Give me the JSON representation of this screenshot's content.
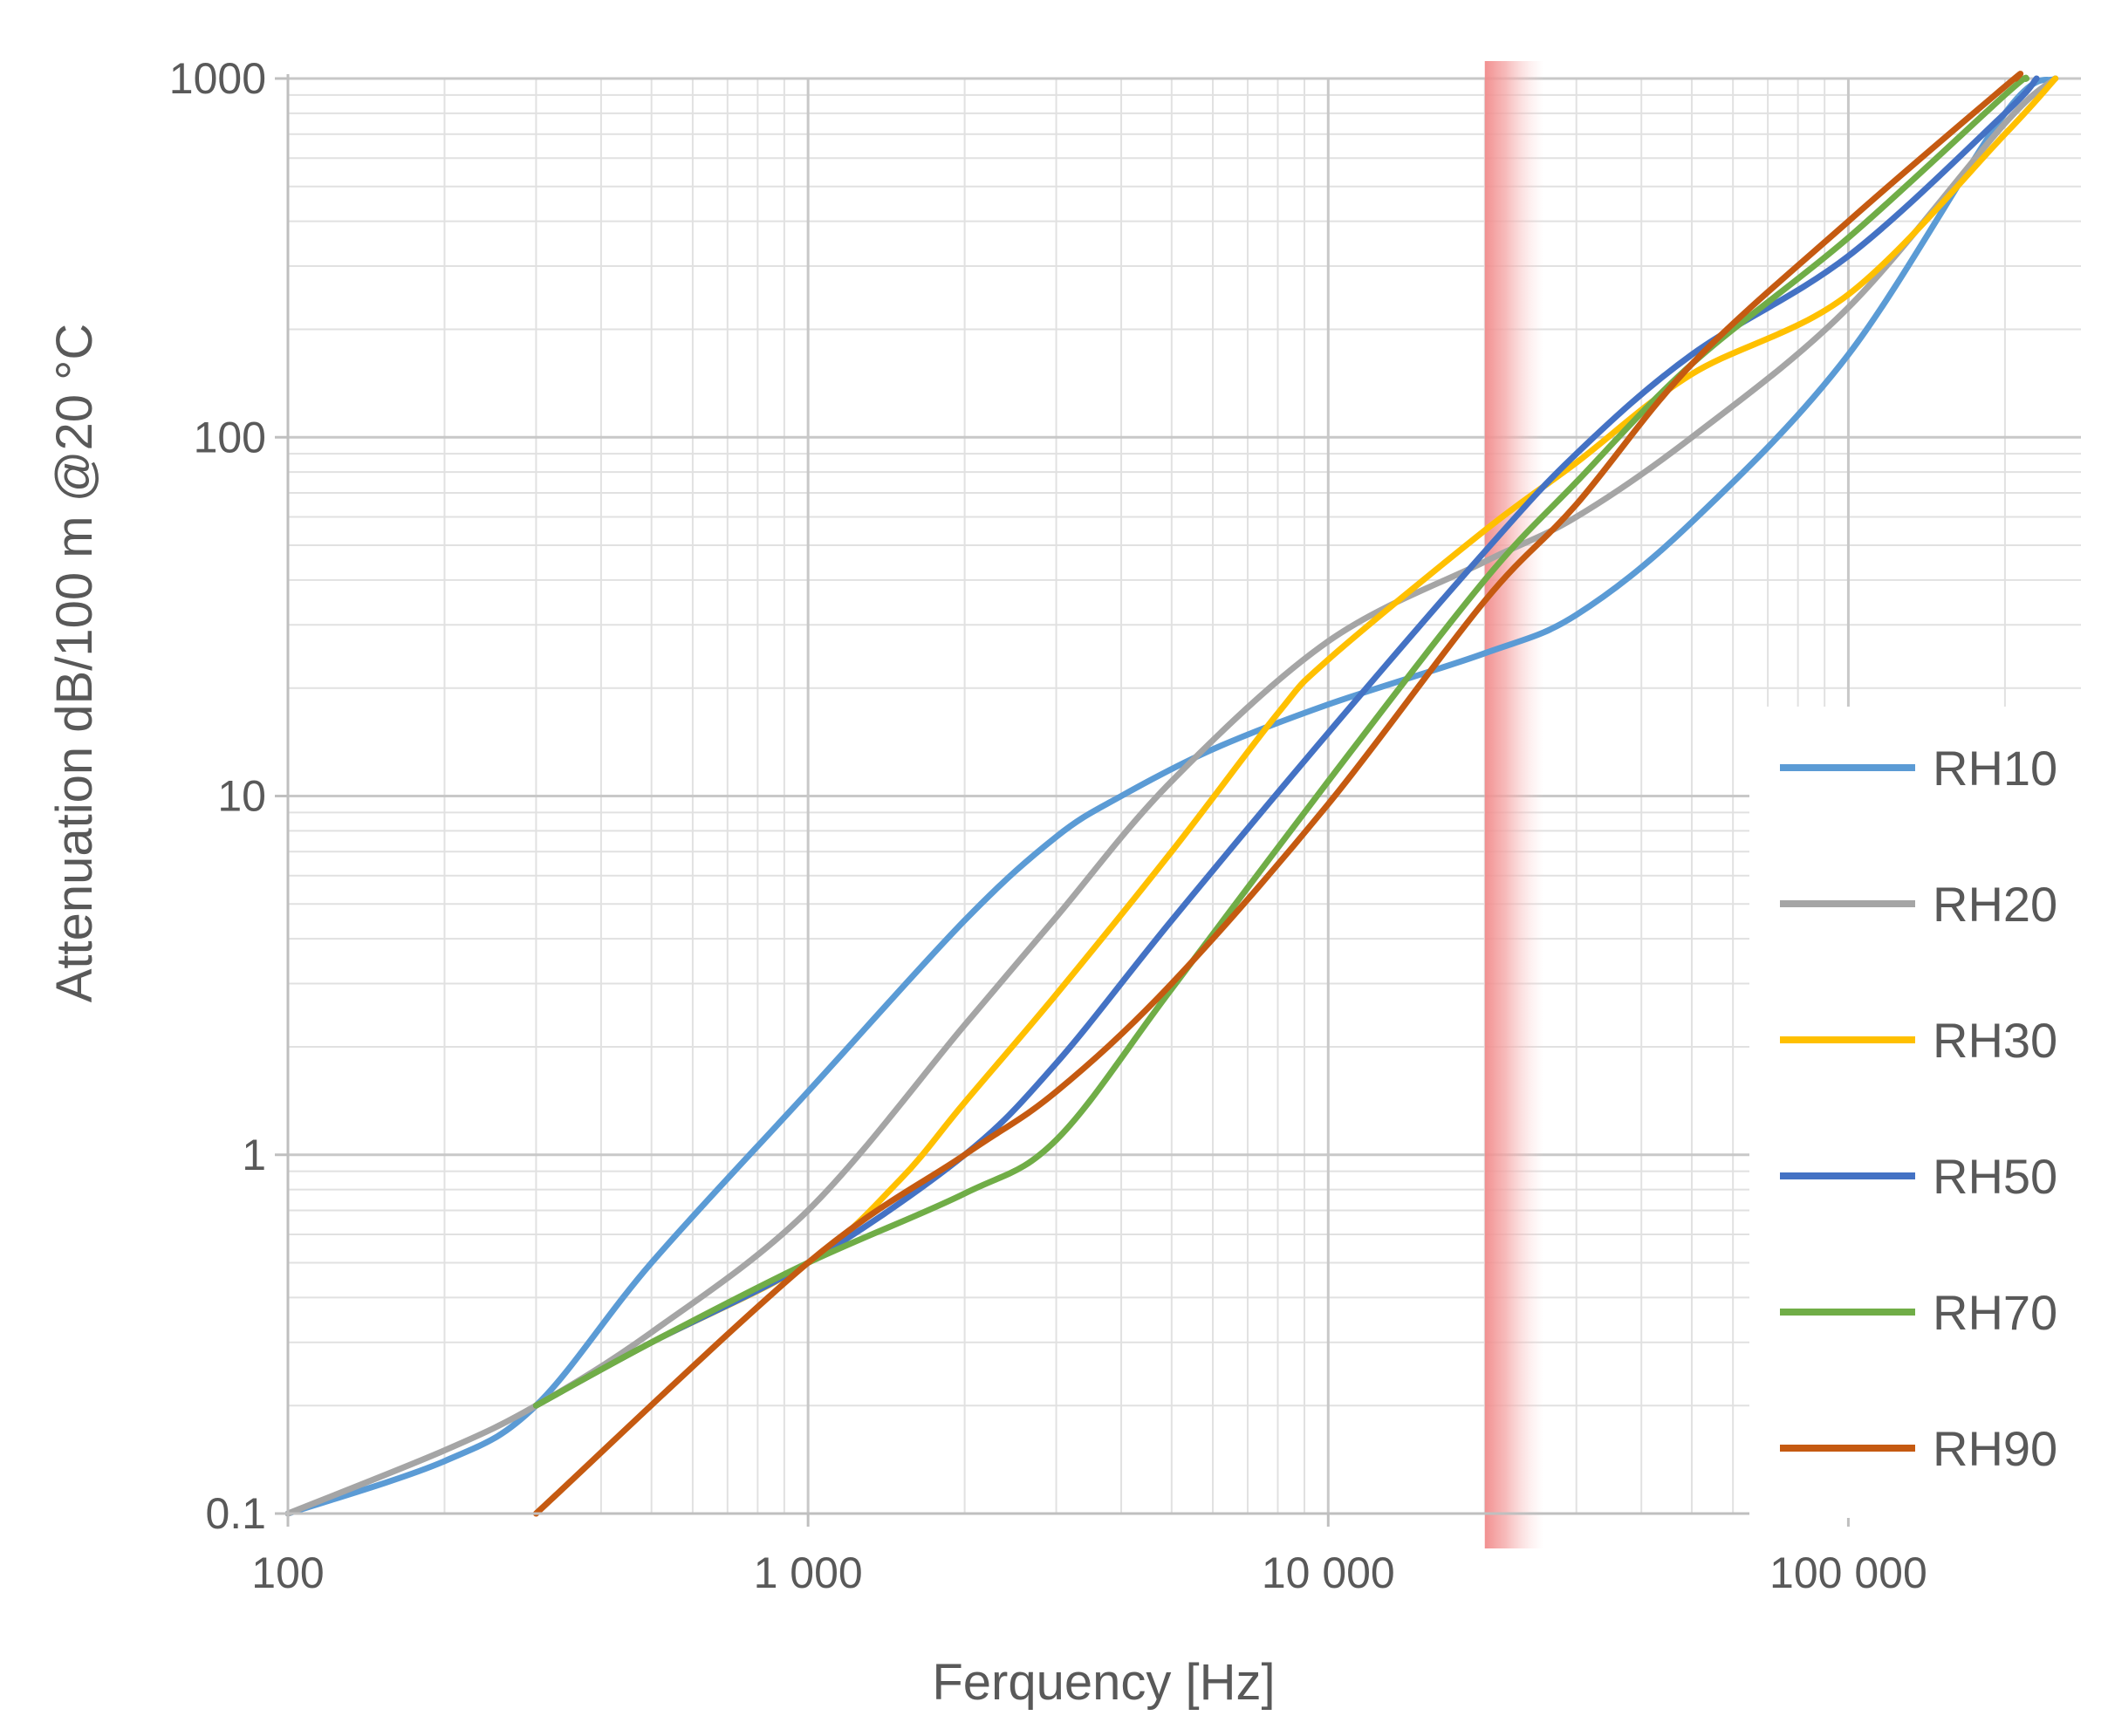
{
  "chart_data": {
    "type": "line",
    "xlabel": "Ferquency [Hz]",
    "ylabel": "Attenuation dB/100 m @20 °C",
    "x_scale": "log",
    "y_scale": "log",
    "xlim": [
      100,
      280000
    ],
    "ylim": [
      0.1,
      1000
    ],
    "x_ticks": [
      100,
      1000,
      10000,
      100000
    ],
    "x_tick_labels": [
      "100",
      "1 000",
      "10 000",
      "100 000"
    ],
    "y_ticks": [
      0.1,
      1,
      10,
      100,
      1000
    ],
    "y_tick_labels": [
      "0.1",
      "1",
      "10",
      "100",
      "1000"
    ],
    "grid": true,
    "legend_position": "right",
    "highlight_band": {
      "x_from": 20000,
      "x_to": 26000,
      "color": "#f6a5a5"
    },
    "series": [
      {
        "name": "RH10",
        "color": "#5b9bd5",
        "x": [
          100,
          200,
          300,
          500,
          1000,
          2000,
          3000,
          4000,
          6000,
          10000,
          20000,
          30000,
          50000,
          100000,
          200000,
          250000
        ],
        "y": [
          0.1,
          0.14,
          0.2,
          0.5,
          1.5,
          4.5,
          7.7,
          10,
          13.5,
          18,
          25,
          32,
          58,
          170,
          800,
          1000
        ]
      },
      {
        "name": "RH20",
        "color": "#a5a5a5",
        "x": [
          100,
          200,
          300,
          500,
          1000,
          2000,
          3000,
          5000,
          10000,
          20000,
          30000,
          50000,
          100000,
          200000,
          250000
        ],
        "y": [
          0.1,
          0.15,
          0.2,
          0.32,
          0.7,
          2.3,
          4.6,
          11,
          27,
          45,
          60,
          100,
          230,
          750,
          1000
        ]
      },
      {
        "name": "RH30",
        "color": "#ffc000",
        "x": [
          300,
          500,
          1000,
          1500,
          2000,
          3000,
          5000,
          8000,
          10000,
          20000,
          30000,
          50000,
          100000,
          200000,
          250000
        ],
        "y": [
          0.2,
          0.3,
          0.5,
          0.85,
          1.4,
          2.8,
          7,
          17,
          24,
          55,
          85,
          150,
          250,
          700,
          1000
        ]
      },
      {
        "name": "RH50",
        "color": "#4472c4",
        "x": [
          300,
          500,
          1000,
          2000,
          3000,
          5000,
          10000,
          20000,
          30000,
          50000,
          100000,
          200000,
          230000
        ],
        "y": [
          0.2,
          0.3,
          0.5,
          1.0,
          1.8,
          4.5,
          15,
          48,
          90,
          170,
          320,
          800,
          1000
        ]
      },
      {
        "name": "RH70",
        "color": "#70ad47",
        "x": [
          300,
          500,
          1000,
          2000,
          3000,
          5000,
          10000,
          20000,
          30000,
          50000,
          100000,
          200000,
          220000
        ],
        "y": [
          0.2,
          0.3,
          0.5,
          0.78,
          1.1,
          2.9,
          11,
          40,
          75,
          160,
          360,
          900,
          1000
        ]
      },
      {
        "name": "RH90",
        "color": "#c55a11",
        "x": [
          300,
          1000,
          2000,
          3000,
          5000,
          10000,
          20000,
          30000,
          50000,
          100000,
          200000,
          210000
        ],
        "y": [
          0.1,
          0.5,
          1.0,
          1.5,
          3.0,
          9.5,
          35,
          65,
          160,
          400,
          950,
          1000
        ]
      }
    ]
  }
}
